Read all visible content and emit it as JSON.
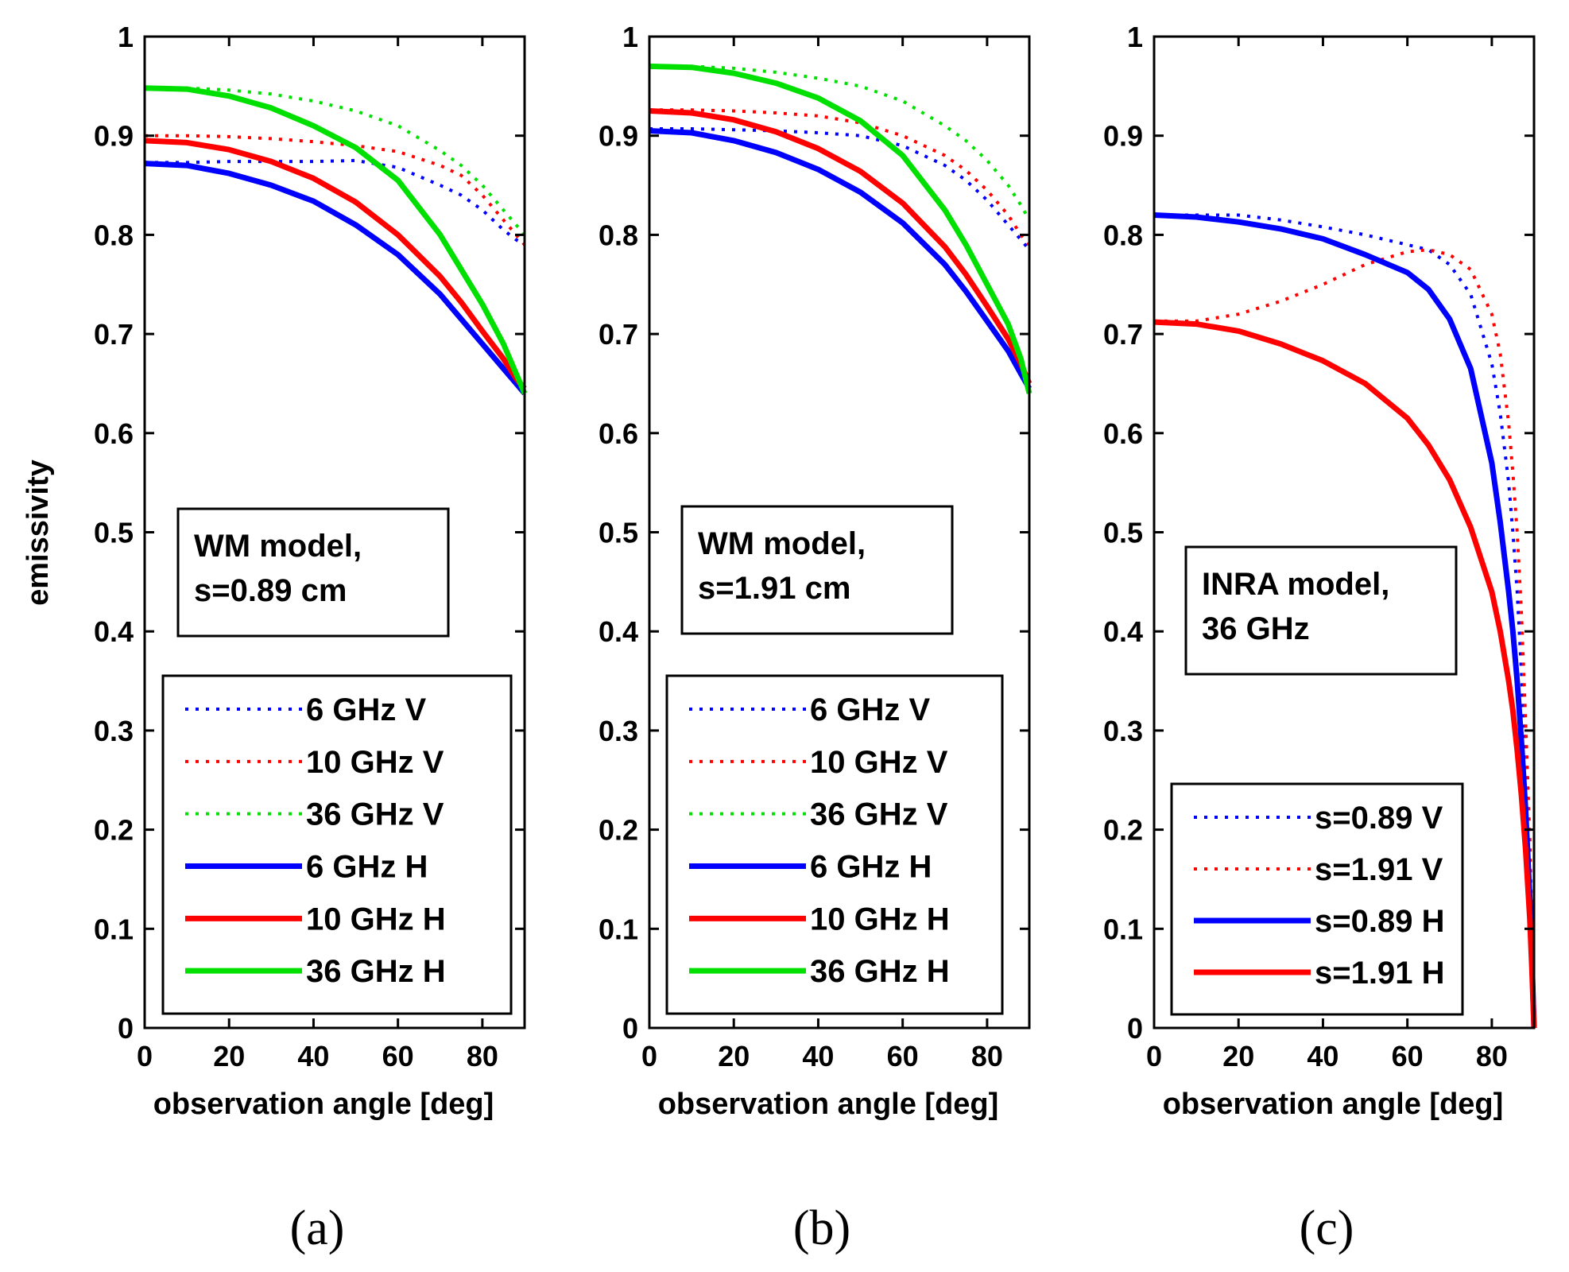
{
  "figure": {
    "ylabel": "emissivity",
    "xlabel": "observation angle [deg]"
  },
  "colors": {
    "6 GHz": "#0000ff",
    "10 GHz": "#ff0000",
    "36 GHz": "#00e000",
    "s=0.89": "#0000ff",
    "s=1.91": "#ff0000"
  },
  "chart_data": [
    {
      "type": "line",
      "panel_label": "(a)",
      "note_lines": [
        "WM model,",
        "s=0.89 cm"
      ],
      "xlim": [
        0,
        90
      ],
      "ylim": [
        0,
        1
      ],
      "xticks": [
        0,
        20,
        40,
        60,
        80
      ],
      "yticks": [
        0,
        0.1,
        0.2,
        0.3,
        0.4,
        0.5,
        0.6,
        0.7,
        0.8,
        0.9,
        1
      ],
      "ytick_labels": [
        "0",
        "0.1",
        "0.2",
        "0.3",
        "0.4",
        "0.5",
        "0.6",
        "0.7",
        "0.8",
        "0.9",
        "1"
      ],
      "xlabel": "observation angle [deg]",
      "ylabel": "emissivity",
      "grid": false,
      "legend_position": "bottom-left",
      "x": [
        0,
        10,
        20,
        30,
        40,
        50,
        60,
        70,
        75,
        80,
        85,
        88,
        90
      ],
      "series": [
        {
          "name": "6 GHz V",
          "color": "#0000ff",
          "style": "dotted",
          "values": [
            0.873,
            0.873,
            0.874,
            0.874,
            0.874,
            0.875,
            0.868,
            0.85,
            0.84,
            0.825,
            0.805,
            0.795,
            0.79
          ]
        },
        {
          "name": "10 GHz V",
          "color": "#ff0000",
          "style": "dotted",
          "values": [
            0.9,
            0.9,
            0.899,
            0.897,
            0.894,
            0.89,
            0.884,
            0.87,
            0.86,
            0.84,
            0.815,
            0.8,
            0.79
          ]
        },
        {
          "name": "36 GHz V",
          "color": "#00e000",
          "style": "dotted",
          "values": [
            0.948,
            0.948,
            0.946,
            0.942,
            0.935,
            0.925,
            0.91,
            0.885,
            0.87,
            0.85,
            0.825,
            0.81,
            0.8
          ]
        },
        {
          "name": "6 GHz H",
          "color": "#0000ff",
          "style": "solid",
          "values": [
            0.872,
            0.87,
            0.862,
            0.85,
            0.834,
            0.81,
            0.78,
            0.74,
            0.715,
            0.69,
            0.665,
            0.65,
            0.64
          ]
        },
        {
          "name": "10 GHz H",
          "color": "#ff0000",
          "style": "solid",
          "values": [
            0.895,
            0.893,
            0.886,
            0.874,
            0.857,
            0.833,
            0.8,
            0.758,
            0.732,
            0.703,
            0.675,
            0.655,
            0.645
          ]
        },
        {
          "name": "36 GHz H",
          "color": "#00e000",
          "style": "solid",
          "values": [
            0.948,
            0.947,
            0.94,
            0.928,
            0.91,
            0.888,
            0.855,
            0.8,
            0.765,
            0.73,
            0.69,
            0.66,
            0.64
          ]
        }
      ]
    },
    {
      "type": "line",
      "panel_label": "(b)",
      "note_lines": [
        "WM model,",
        "s=1.91 cm"
      ],
      "xlim": [
        0,
        90
      ],
      "ylim": [
        0,
        1
      ],
      "xticks": [
        0,
        20,
        40,
        60,
        80
      ],
      "yticks": [
        0,
        0.1,
        0.2,
        0.3,
        0.4,
        0.5,
        0.6,
        0.7,
        0.8,
        0.9,
        1
      ],
      "ytick_labels": [
        "0",
        "0.1",
        "0.2",
        "0.3",
        "0.4",
        "0.5",
        "0.6",
        "0.7",
        "0.8",
        "0.9",
        "1"
      ],
      "xlabel": "observation angle [deg]",
      "ylabel": "",
      "grid": false,
      "legend_position": "bottom-left",
      "x": [
        0,
        10,
        20,
        30,
        40,
        50,
        60,
        70,
        75,
        80,
        85,
        88,
        90
      ],
      "series": [
        {
          "name": "6 GHz V",
          "color": "#0000ff",
          "style": "dotted",
          "values": [
            0.907,
            0.907,
            0.906,
            0.905,
            0.903,
            0.9,
            0.89,
            0.87,
            0.855,
            0.835,
            0.81,
            0.795,
            0.785
          ]
        },
        {
          "name": "10 GHz V",
          "color": "#ff0000",
          "style": "dotted",
          "values": [
            0.926,
            0.926,
            0.925,
            0.923,
            0.92,
            0.913,
            0.9,
            0.88,
            0.865,
            0.845,
            0.82,
            0.8,
            0.79
          ]
        },
        {
          "name": "36 GHz V",
          "color": "#00e000",
          "style": "dotted",
          "values": [
            0.97,
            0.97,
            0.968,
            0.964,
            0.958,
            0.95,
            0.935,
            0.91,
            0.895,
            0.875,
            0.85,
            0.83,
            0.815
          ]
        },
        {
          "name": "6 GHz H",
          "color": "#0000ff",
          "style": "solid",
          "values": [
            0.905,
            0.903,
            0.895,
            0.883,
            0.866,
            0.843,
            0.812,
            0.77,
            0.743,
            0.713,
            0.683,
            0.66,
            0.645
          ]
        },
        {
          "name": "10 GHz H",
          "color": "#ff0000",
          "style": "solid",
          "values": [
            0.925,
            0.923,
            0.916,
            0.904,
            0.887,
            0.864,
            0.832,
            0.788,
            0.76,
            0.728,
            0.695,
            0.67,
            0.65
          ]
        },
        {
          "name": "36 GHz H",
          "color": "#00e000",
          "style": "solid",
          "values": [
            0.97,
            0.969,
            0.963,
            0.953,
            0.938,
            0.915,
            0.88,
            0.825,
            0.79,
            0.75,
            0.71,
            0.675,
            0.64
          ]
        }
      ]
    },
    {
      "type": "line",
      "panel_label": "(c)",
      "note_lines": [
        "INRA model,",
        "36 GHz"
      ],
      "xlim": [
        0,
        90
      ],
      "ylim": [
        0,
        1
      ],
      "xticks": [
        0,
        20,
        40,
        60,
        80
      ],
      "yticks": [
        0,
        0.1,
        0.2,
        0.3,
        0.4,
        0.5,
        0.6,
        0.7,
        0.8,
        0.9,
        1
      ],
      "ytick_labels": [
        "0",
        "0.1",
        "0.2",
        "0.3",
        "0.4",
        "0.5",
        "0.6",
        "0.7",
        "0.8",
        "0.9",
        "1"
      ],
      "xlabel": "observation angle [deg]",
      "ylabel": "",
      "grid": false,
      "legend_position": "bottom-left",
      "x": [
        0,
        10,
        20,
        30,
        40,
        50,
        60,
        65,
        70,
        75,
        80,
        82,
        84,
        85,
        86,
        87,
        88,
        89,
        89.5,
        90
      ],
      "series": [
        {
          "name": "s=0.89 V",
          "color": "#0000ff",
          "style": "dotted",
          "values": [
            0.82,
            0.82,
            0.82,
            0.815,
            0.808,
            0.8,
            0.79,
            0.785,
            0.77,
            0.74,
            0.67,
            0.62,
            0.55,
            0.5,
            0.44,
            0.36,
            0.27,
            0.16,
            0.09,
            0
          ]
        },
        {
          "name": "s=1.91 V",
          "color": "#ff0000",
          "style": "dotted",
          "values": [
            0.713,
            0.713,
            0.72,
            0.733,
            0.75,
            0.77,
            0.783,
            0.785,
            0.78,
            0.765,
            0.72,
            0.68,
            0.61,
            0.56,
            0.5,
            0.42,
            0.31,
            0.19,
            0.1,
            0
          ]
        },
        {
          "name": "s=0.89 H",
          "color": "#0000ff",
          "style": "solid",
          "values": [
            0.82,
            0.818,
            0.813,
            0.806,
            0.796,
            0.78,
            0.762,
            0.745,
            0.715,
            0.665,
            0.57,
            0.51,
            0.44,
            0.4,
            0.35,
            0.29,
            0.22,
            0.13,
            0.07,
            0
          ]
        },
        {
          "name": "s=1.91 H",
          "color": "#ff0000",
          "style": "solid",
          "values": [
            0.712,
            0.71,
            0.703,
            0.69,
            0.673,
            0.65,
            0.615,
            0.588,
            0.553,
            0.505,
            0.44,
            0.4,
            0.35,
            0.32,
            0.28,
            0.235,
            0.18,
            0.11,
            0.06,
            0
          ]
        }
      ]
    }
  ]
}
